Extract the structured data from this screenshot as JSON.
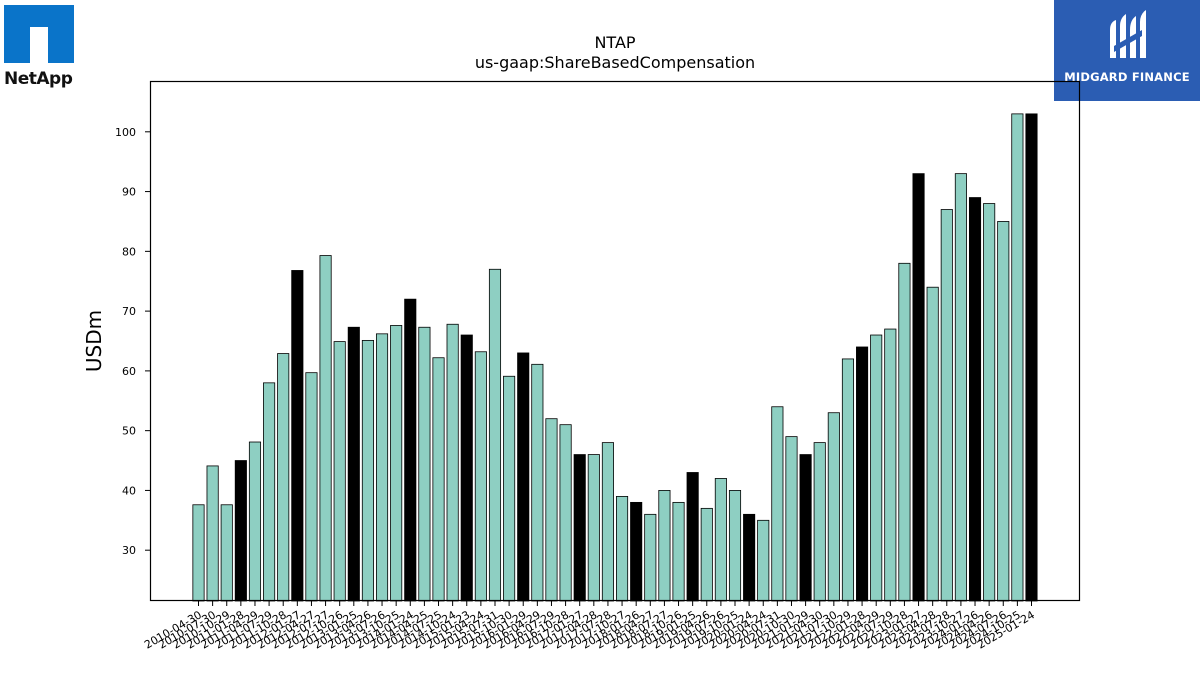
{
  "logos": {
    "left_text": "NetApp",
    "right_text": "MIDGARD FINANCE"
  },
  "colors": {
    "bar_default": "#8ecfc2",
    "bar_highlight": "#000000",
    "axis": "#000000"
  },
  "chart_data": {
    "type": "bar",
    "title": "NTAP",
    "subtitle": "us-gaap:ShareBasedCompensation",
    "ylabel": "USDm",
    "xlabel": "",
    "ylim": [
      21.5,
      108.5
    ],
    "yticks": [
      30,
      40,
      50,
      60,
      70,
      80,
      90,
      100
    ],
    "grid": false,
    "categories": [
      "2010-04-30",
      "2010-07-30",
      "2010-10-29",
      "2011-01-28",
      "2011-04-29",
      "2011-07-29",
      "2011-10-28",
      "2012-01-27",
      "2012-04-27",
      "2012-07-27",
      "2012-10-26",
      "2013-01-25",
      "2013-04-26",
      "2013-07-26",
      "2013-10-25",
      "2014-01-24",
      "2014-04-25",
      "2014-07-25",
      "2014-10-24",
      "2015-01-23",
      "2015-04-24",
      "2015-07-31",
      "2015-10-30",
      "2016-01-29",
      "2016-04-29",
      "2016-07-29",
      "2016-10-28",
      "2017-01-27",
      "2017-04-28",
      "2017-07-28",
      "2017-10-27",
      "2018-01-26",
      "2018-04-27",
      "2018-07-27",
      "2018-10-26",
      "2019-01-25",
      "2019-04-26",
      "2019-07-26",
      "2019-10-25",
      "2020-01-24",
      "2020-04-24",
      "2020-07-31",
      "2020-10-30",
      "2021-01-29",
      "2021-04-30",
      "2021-07-30",
      "2021-10-29",
      "2022-01-28",
      "2022-04-29",
      "2022-07-29",
      "2022-10-28",
      "2023-01-27",
      "2023-04-28",
      "2023-07-28",
      "2023-10-27",
      "2024-01-26",
      "2024-04-26",
      "2024-07-26",
      "2024-10-25",
      "2025-01-24"
    ],
    "values": [
      37.6,
      44.1,
      37.6,
      45.0,
      48.1,
      58.0,
      62.9,
      76.8,
      59.7,
      79.3,
      64.9,
      67.3,
      65.1,
      66.2,
      67.6,
      72.0,
      67.3,
      62.2,
      67.8,
      66.0,
      63.2,
      77.0,
      59.1,
      63.0,
      61.1,
      52.0,
      51.0,
      46.0,
      46.0,
      48.0,
      39.0,
      38.0,
      36.0,
      40.0,
      38.0,
      43.0,
      37.0,
      42.0,
      40.0,
      36.0,
      35.0,
      54.0,
      49.0,
      46.0,
      48.0,
      53.0,
      62.0,
      64.0,
      66.0,
      67.0,
      78.0,
      93.0,
      74.0,
      87.0,
      93.0,
      89.0,
      88.0,
      85.0,
      103.0,
      103.0
    ],
    "highlight": [
      false,
      false,
      false,
      true,
      false,
      false,
      false,
      true,
      false,
      false,
      false,
      true,
      false,
      false,
      false,
      true,
      false,
      false,
      false,
      true,
      false,
      false,
      false,
      true,
      false,
      false,
      false,
      true,
      false,
      false,
      false,
      true,
      false,
      false,
      false,
      true,
      false,
      false,
      false,
      true,
      false,
      false,
      false,
      true,
      false,
      false,
      false,
      true,
      false,
      false,
      false,
      true,
      false,
      false,
      false,
      true,
      false,
      false,
      false,
      true
    ]
  }
}
